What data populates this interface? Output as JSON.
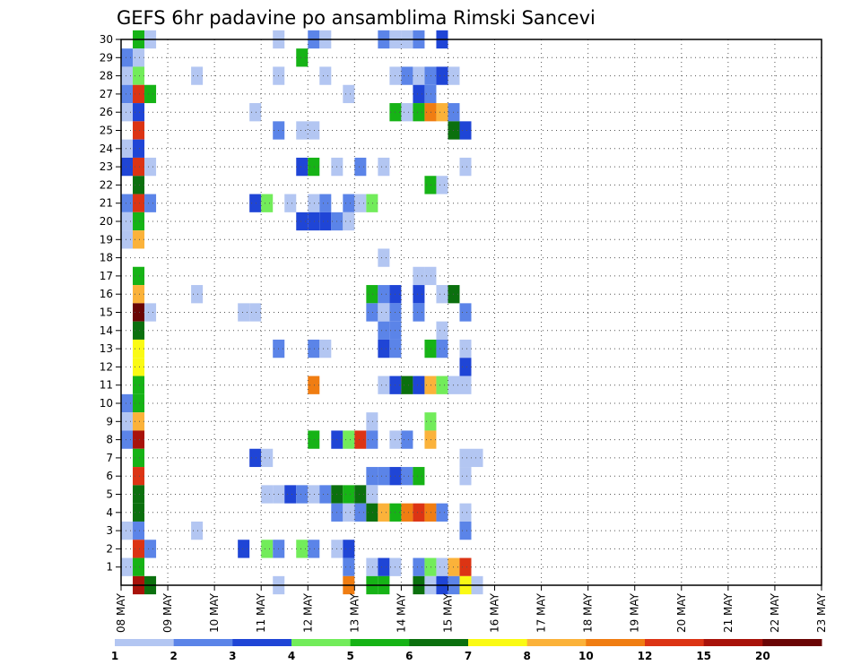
{
  "chart_data": {
    "type": "heatmap",
    "title": "GEFS 6hr padavine po ansamblima Rimski Sancevi",
    "xlabel": "",
    "ylabel": "",
    "y_ticks": [
      1,
      2,
      3,
      4,
      5,
      6,
      7,
      8,
      9,
      10,
      11,
      12,
      13,
      14,
      15,
      16,
      17,
      18,
      19,
      20,
      21,
      22,
      23,
      24,
      25,
      26,
      27,
      28,
      29,
      30
    ],
    "x_ticks": [
      "08 MAY",
      "09 MAY",
      "10 MAY",
      "11 MAY",
      "12 MAY",
      "13 MAY",
      "14 MAY",
      "15 MAY",
      "16 MAY",
      "17 MAY",
      "18 MAY",
      "19 MAY",
      "20 MAY",
      "21 MAY",
      "22 MAY",
      "23 MAY"
    ],
    "x_range_steps": [
      0,
      60
    ],
    "y_range": [
      0,
      30
    ],
    "grid": true,
    "colorbar": {
      "labels": [
        "1",
        "2",
        "3",
        "4",
        "5",
        "6",
        "7",
        "8",
        "10",
        "12",
        "15",
        "20"
      ],
      "colors": [
        "#b3c6f2",
        "#5b84e8",
        "#1f45d6",
        "#72ec5a",
        "#16b316",
        "#0b700e",
        "#fafa14",
        "#fbb23a",
        "#f07d12",
        "#dc3414",
        "#a8120a",
        "#6a0505"
      ]
    },
    "cells": [
      [
        1,
        30,
        4
      ],
      [
        2,
        30,
        0
      ],
      [
        13,
        30,
        0
      ],
      [
        16,
        30,
        1
      ],
      [
        17,
        30,
        0
      ],
      [
        22,
        30,
        1
      ],
      [
        23,
        30,
        0
      ],
      [
        24,
        30,
        0
      ],
      [
        25,
        30,
        1
      ],
      [
        27,
        30,
        2
      ],
      [
        0,
        29,
        1
      ],
      [
        1,
        29,
        0
      ],
      [
        15,
        29,
        4
      ],
      [
        0,
        28,
        0
      ],
      [
        1,
        28,
        3
      ],
      [
        6,
        28,
        0
      ],
      [
        13,
        28,
        0
      ],
      [
        17,
        28,
        0
      ],
      [
        23,
        28,
        0
      ],
      [
        24,
        28,
        1
      ],
      [
        25,
        28,
        0
      ],
      [
        26,
        28,
        1
      ],
      [
        27,
        28,
        2
      ],
      [
        28,
        28,
        0
      ],
      [
        0,
        27,
        1
      ],
      [
        1,
        27,
        9
      ],
      [
        2,
        27,
        4
      ],
      [
        19,
        27,
        0
      ],
      [
        25,
        27,
        2
      ],
      [
        26,
        27,
        1
      ],
      [
        0,
        26,
        0
      ],
      [
        1,
        26,
        2
      ],
      [
        11,
        26,
        0
      ],
      [
        23,
        26,
        4
      ],
      [
        24,
        26,
        0
      ],
      [
        25,
        26,
        4
      ],
      [
        26,
        26,
        8
      ],
      [
        27,
        26,
        7
      ],
      [
        28,
        26,
        1
      ],
      [
        1,
        25,
        9
      ],
      [
        13,
        25,
        1
      ],
      [
        15,
        25,
        0
      ],
      [
        16,
        25,
        0
      ],
      [
        28,
        25,
        5
      ],
      [
        29,
        25,
        2
      ],
      [
        0,
        24,
        0
      ],
      [
        1,
        24,
        2
      ],
      [
        0,
        23,
        2
      ],
      [
        1,
        23,
        9
      ],
      [
        2,
        23,
        0
      ],
      [
        15,
        23,
        2
      ],
      [
        16,
        23,
        4
      ],
      [
        18,
        23,
        0
      ],
      [
        20,
        23,
        1
      ],
      [
        22,
        23,
        0
      ],
      [
        29,
        23,
        0
      ],
      [
        1,
        22,
        5
      ],
      [
        26,
        22,
        4
      ],
      [
        27,
        22,
        0
      ],
      [
        0,
        21,
        1
      ],
      [
        1,
        21,
        9
      ],
      [
        2,
        21,
        1
      ],
      [
        11,
        21,
        2
      ],
      [
        12,
        21,
        3
      ],
      [
        14,
        21,
        0
      ],
      [
        16,
        21,
        0
      ],
      [
        17,
        21,
        1
      ],
      [
        19,
        21,
        1
      ],
      [
        20,
        21,
        0
      ],
      [
        21,
        21,
        3
      ],
      [
        0,
        20,
        0
      ],
      [
        1,
        20,
        4
      ],
      [
        15,
        20,
        2
      ],
      [
        16,
        20,
        2
      ],
      [
        17,
        20,
        2
      ],
      [
        18,
        20,
        1
      ],
      [
        19,
        20,
        0
      ],
      [
        0,
        19,
        0
      ],
      [
        1,
        19,
        7
      ],
      [
        22,
        18,
        0
      ],
      [
        1,
        17,
        4
      ],
      [
        25,
        17,
        0
      ],
      [
        26,
        17,
        0
      ],
      [
        1,
        16,
        7
      ],
      [
        6,
        16,
        0
      ],
      [
        21,
        16,
        4
      ],
      [
        22,
        16,
        1
      ],
      [
        23,
        16,
        2
      ],
      [
        25,
        16,
        2
      ],
      [
        27,
        16,
        0
      ],
      [
        28,
        16,
        5
      ],
      [
        1,
        15,
        11
      ],
      [
        2,
        15,
        0
      ],
      [
        10,
        15,
        0
      ],
      [
        11,
        15,
        0
      ],
      [
        21,
        15,
        1
      ],
      [
        22,
        15,
        0
      ],
      [
        23,
        15,
        1
      ],
      [
        25,
        15,
        1
      ],
      [
        29,
        15,
        1
      ],
      [
        1,
        14,
        5
      ],
      [
        22,
        14,
        1
      ],
      [
        23,
        14,
        1
      ],
      [
        27,
        14,
        0
      ],
      [
        1,
        13,
        6
      ],
      [
        13,
        13,
        1
      ],
      [
        16,
        13,
        1
      ],
      [
        17,
        13,
        0
      ],
      [
        22,
        13,
        2
      ],
      [
        23,
        13,
        1
      ],
      [
        26,
        13,
        4
      ],
      [
        27,
        13,
        1
      ],
      [
        29,
        13,
        0
      ],
      [
        1,
        12,
        6
      ],
      [
        29,
        12,
        2
      ],
      [
        1,
        11,
        4
      ],
      [
        16,
        11,
        8
      ],
      [
        22,
        11,
        0
      ],
      [
        23,
        11,
        2
      ],
      [
        24,
        11,
        5
      ],
      [
        25,
        11,
        2
      ],
      [
        26,
        11,
        7
      ],
      [
        27,
        11,
        3
      ],
      [
        28,
        11,
        0
      ],
      [
        29,
        11,
        0
      ],
      [
        0,
        10,
        1
      ],
      [
        1,
        10,
        4
      ],
      [
        0,
        9,
        0
      ],
      [
        1,
        9,
        7
      ],
      [
        21,
        9,
        0
      ],
      [
        26,
        9,
        3
      ],
      [
        0,
        8,
        1
      ],
      [
        1,
        8,
        10
      ],
      [
        16,
        8,
        4
      ],
      [
        18,
        8,
        2
      ],
      [
        19,
        8,
        3
      ],
      [
        20,
        8,
        9
      ],
      [
        21,
        8,
        1
      ],
      [
        23,
        8,
        0
      ],
      [
        24,
        8,
        1
      ],
      [
        26,
        8,
        7
      ],
      [
        1,
        7,
        4
      ],
      [
        11,
        7,
        2
      ],
      [
        12,
        7,
        0
      ],
      [
        29,
        7,
        0
      ],
      [
        30,
        7,
        0
      ],
      [
        1,
        6,
        9
      ],
      [
        21,
        6,
        1
      ],
      [
        22,
        6,
        1
      ],
      [
        23,
        6,
        2
      ],
      [
        24,
        6,
        1
      ],
      [
        25,
        6,
        4
      ],
      [
        29,
        6,
        0
      ],
      [
        1,
        5,
        5
      ],
      [
        12,
        5,
        0
      ],
      [
        13,
        5,
        0
      ],
      [
        14,
        5,
        2
      ],
      [
        15,
        5,
        1
      ],
      [
        16,
        5,
        0
      ],
      [
        17,
        5,
        1
      ],
      [
        18,
        5,
        5
      ],
      [
        19,
        5,
        4
      ],
      [
        20,
        5,
        5
      ],
      [
        21,
        5,
        0
      ],
      [
        1,
        4,
        5
      ],
      [
        18,
        4,
        1
      ],
      [
        19,
        4,
        0
      ],
      [
        20,
        4,
        1
      ],
      [
        21,
        4,
        5
      ],
      [
        22,
        4,
        7
      ],
      [
        23,
        4,
        4
      ],
      [
        24,
        4,
        8
      ],
      [
        25,
        4,
        9
      ],
      [
        26,
        4,
        8
      ],
      [
        27,
        4,
        1
      ],
      [
        29,
        4,
        0
      ],
      [
        0,
        3,
        0
      ],
      [
        1,
        3,
        1
      ],
      [
        6,
        3,
        0
      ],
      [
        29,
        3,
        1
      ],
      [
        1,
        2,
        9
      ],
      [
        2,
        2,
        1
      ],
      [
        10,
        2,
        2
      ],
      [
        12,
        2,
        3
      ],
      [
        13,
        2,
        1
      ],
      [
        15,
        2,
        3
      ],
      [
        16,
        2,
        1
      ],
      [
        18,
        2,
        0
      ],
      [
        19,
        2,
        2
      ],
      [
        0,
        1,
        0
      ],
      [
        1,
        1,
        4
      ],
      [
        19,
        1,
        1
      ],
      [
        21,
        1,
        0
      ],
      [
        22,
        1,
        2
      ],
      [
        23,
        1,
        0
      ],
      [
        25,
        1,
        1
      ],
      [
        26,
        1,
        3
      ],
      [
        27,
        1,
        0
      ],
      [
        28,
        1,
        7
      ],
      [
        29,
        1,
        9
      ],
      [
        1,
        0,
        10
      ],
      [
        2,
        0,
        5
      ],
      [
        13,
        0,
        0
      ],
      [
        19,
        0,
        8
      ],
      [
        21,
        0,
        4
      ],
      [
        22,
        0,
        4
      ],
      [
        25,
        0,
        5
      ],
      [
        26,
        0,
        0
      ],
      [
        27,
        0,
        2
      ],
      [
        28,
        0,
        1
      ],
      [
        29,
        0,
        6
      ],
      [
        30,
        0,
        0
      ]
    ]
  }
}
